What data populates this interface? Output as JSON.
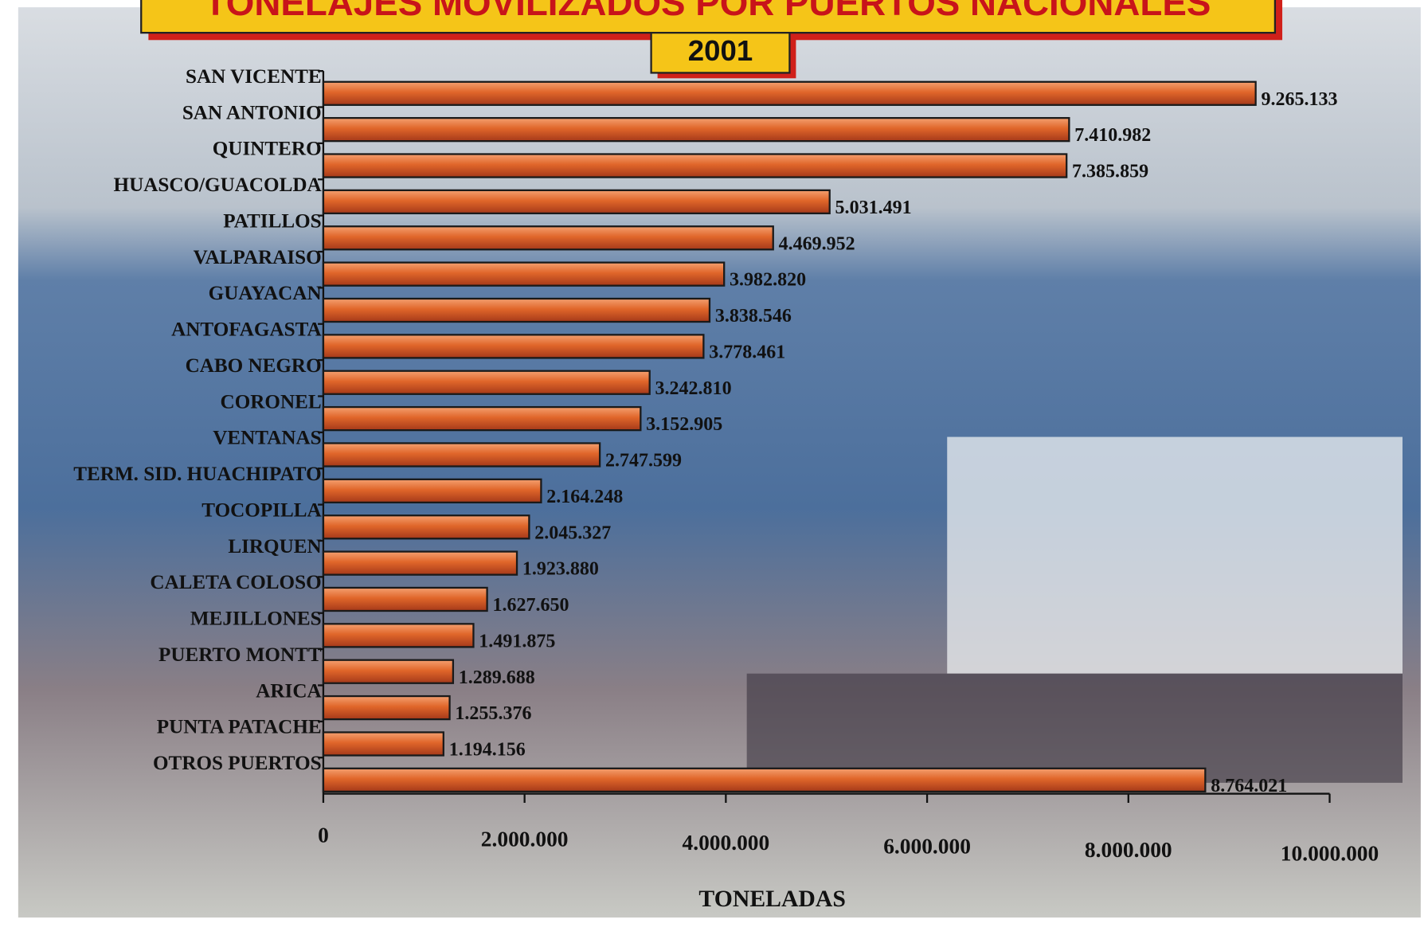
{
  "chart_data": {
    "type": "hbar",
    "title": "TONELAJES MOVILIZADOS POR PUERTOS NACIONALES",
    "subtitle": "2001",
    "x_label": "TONELADAS",
    "categories": [
      "SAN VICENTE",
      "SAN ANTONIO",
      "QUINTERO",
      "HUASCO/GUACOLDA",
      "PATILLOS",
      "VALPARAISO",
      "GUAYACAN",
      "ANTOFAGASTA",
      "CABO NEGRO",
      "CORONEL",
      "VENTANAS",
      "TERM. SID. HUACHIPATO",
      "TOCOPILLA",
      "LIRQUEN",
      "CALETA COLOSO",
      "MEJILLONES",
      "PUERTO MONTT",
      "ARICA",
      "PUNTA PATACHE",
      "OTROS PUERTOS"
    ],
    "values": [
      9265133,
      7410982,
      7385859,
      5031491,
      4469952,
      3982820,
      3838546,
      3778461,
      3242810,
      3152905,
      2747599,
      2164248,
      2045327,
      1923880,
      1627650,
      1491875,
      1289688,
      1255376,
      1194156,
      8764021
    ],
    "value_labels": [
      "9.265.133",
      "7.410.982",
      "7.385.859",
      "5.031.491",
      "4.469.952",
      "3.982.820",
      "3.838.546",
      "3.778.461",
      "3.242.810",
      "3.152.905",
      "2.747.599",
      "2.164.248",
      "2.045.327",
      "1.923.880",
      "1.627.650",
      "1.491.875",
      "1.289.688",
      "1.255.376",
      "1.194.156",
      "8.764.021"
    ],
    "color": "#e0662a",
    "xlim": [
      0,
      10000000
    ],
    "xticks": [
      0,
      {
        "value": 2000000,
        "label": "2.000.000"
      },
      {
        "value": 4000000,
        "label": "4.000.000"
      },
      {
        "value": 6000000,
        "label": "6.000.000"
      },
      {
        "value": 8000000,
        "label": "8.000.000"
      },
      {
        "value": 10000000,
        "label": "10.000.000"
      }
    ]
  }
}
